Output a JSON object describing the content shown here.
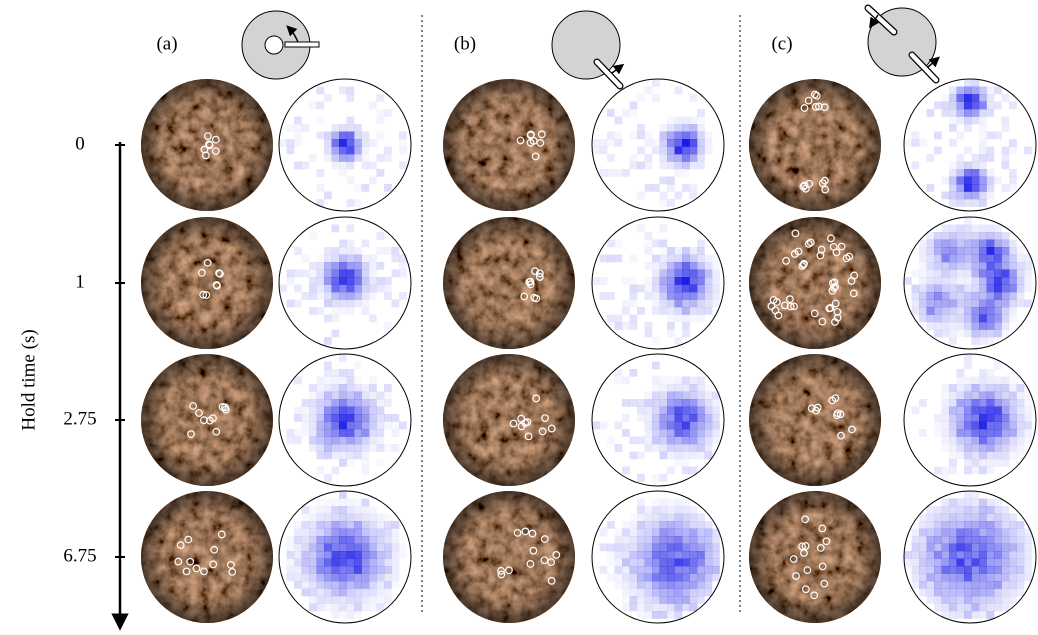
{
  "panels": [
    {
      "label": "(a)"
    },
    {
      "label": "(b)"
    },
    {
      "label": "(c)"
    }
  ],
  "axis": {
    "label": "Hold time (s)",
    "ticks": [
      "0",
      "1",
      "2.75",
      "6.75"
    ]
  }
}
